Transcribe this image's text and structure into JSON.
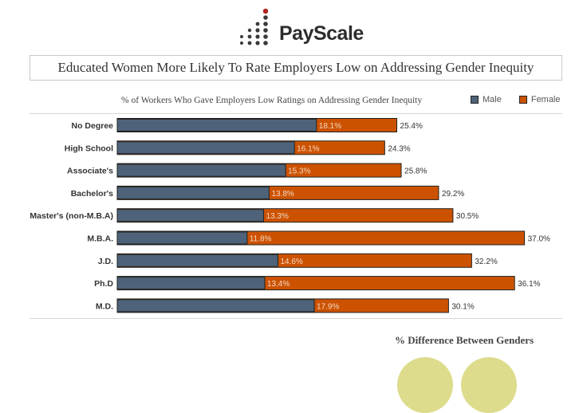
{
  "logo": {
    "text": "PayScale"
  },
  "header": {
    "title": "Educated Women More Likely To Rate Employers Low on Addressing Gender Inequity"
  },
  "chart_data": {
    "type": "bar",
    "orientation": "horizontal",
    "subtitle": "% of Workers Who Gave Employers Low Ratings on Addressing Gender Inequity",
    "categories": [
      "No Degree",
      "High School",
      "Associate's",
      "Bachelor's",
      "Master's (non-M.B.A)",
      "M.B.A.",
      "J.D.",
      "Ph.D",
      "M.D."
    ],
    "series": [
      {
        "name": "Male",
        "color": "#4e6379",
        "values": [
          18.1,
          16.1,
          15.3,
          13.8,
          13.3,
          11.8,
          14.6,
          13.4,
          17.9
        ]
      },
      {
        "name": "Female",
        "color": "#cc5200",
        "values": [
          25.4,
          24.3,
          25.8,
          29.2,
          30.5,
          37.0,
          32.2,
          36.1,
          30.1
        ]
      }
    ],
    "male_labels": [
      "18.1%",
      "16.1%",
      "15.3%",
      "13.8%",
      "13.3%",
      "11.8%",
      "14.6%",
      "13.4%",
      "17.9%"
    ],
    "female_labels": [
      "25.4%",
      "24.3%",
      "25.8%",
      "29.2%",
      "30.5%",
      "37.0%",
      "32.2%",
      "36.1%",
      "30.1%"
    ],
    "xlim": [
      0,
      38
    ],
    "legend_position": "top-right"
  },
  "legend": {
    "male": "Male",
    "female": "Female"
  },
  "footer": {
    "title": "% Difference Between Genders"
  }
}
